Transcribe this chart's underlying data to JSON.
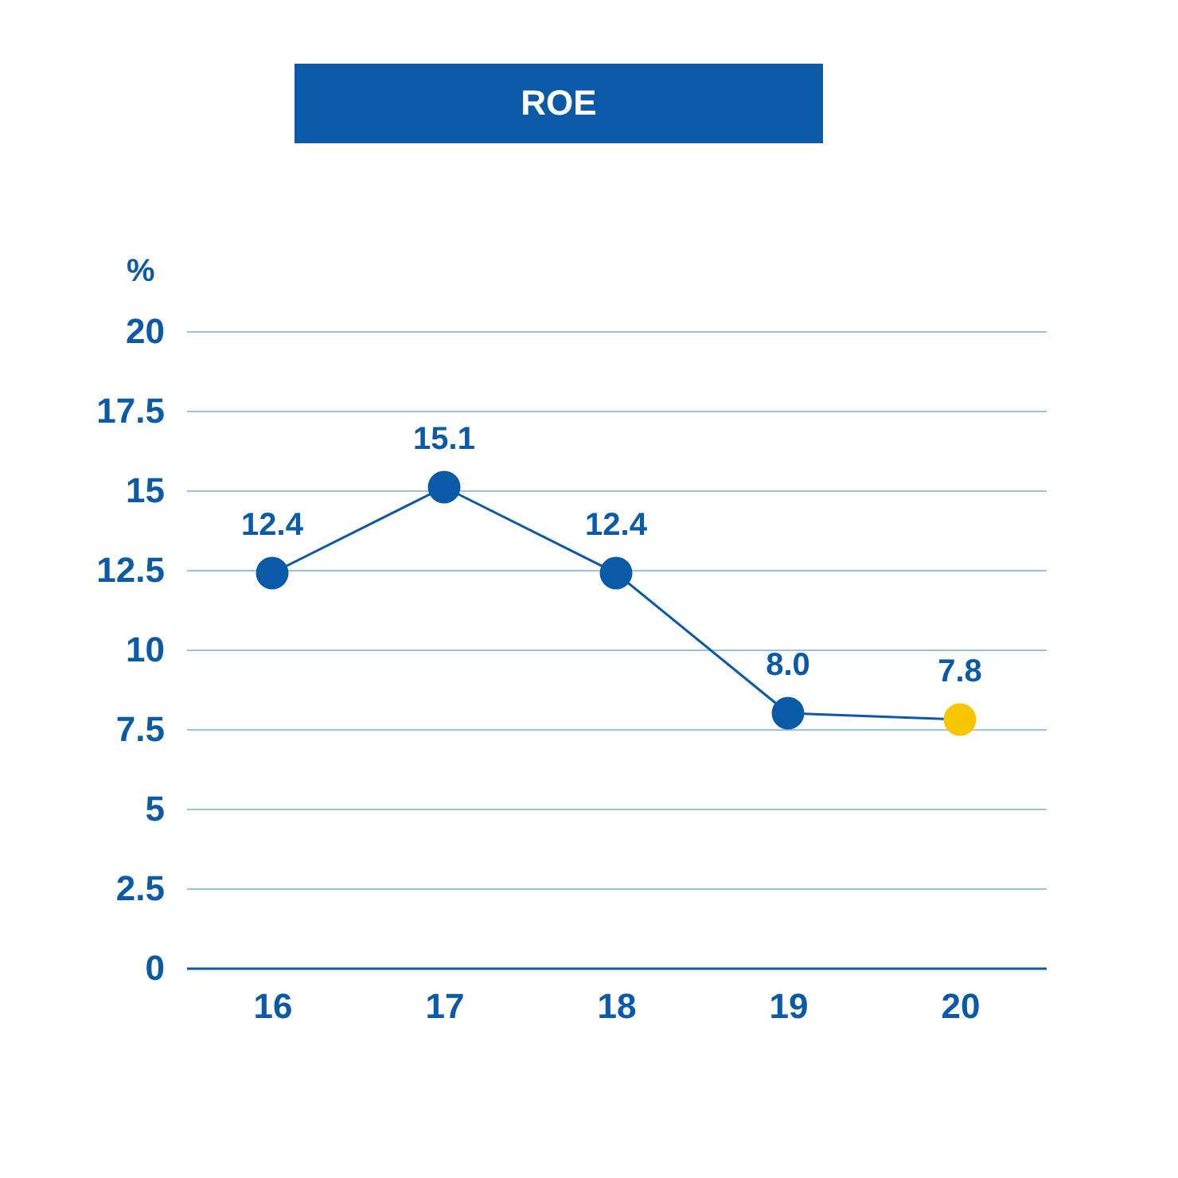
{
  "chart_data": {
    "type": "line",
    "title": "ROE",
    "ylabel": "%",
    "categories": [
      "16",
      "17",
      "18",
      "19",
      "20"
    ],
    "series": [
      {
        "color": "#0a5aa8",
        "colors": [
          "#0a5aa8",
          "#0a5aa8",
          "#0a5aa8",
          "#0a5aa8",
          "#f7c600"
        ],
        "values": [
          12.4,
          15.1,
          12.4,
          8.0,
          7.8
        ],
        "value_labels": [
          "12.4",
          "15.1",
          "12.4",
          "8.0",
          "7.8"
        ]
      }
    ],
    "ylim": [
      0,
      20
    ],
    "yticks": [
      0,
      2.5,
      5,
      7.5,
      10,
      12.5,
      15,
      17.5,
      20
    ],
    "grid": "y",
    "marker": "circle",
    "line_style": "solid"
  }
}
